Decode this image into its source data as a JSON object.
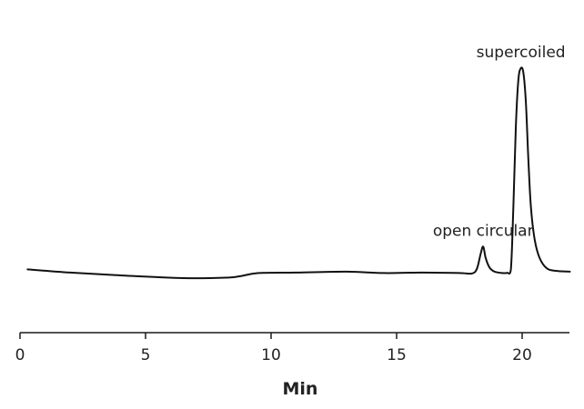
{
  "chart_data": {
    "type": "line",
    "title": "",
    "xlabel": "Min",
    "ylabel": "",
    "xlim": [
      0,
      22
    ],
    "ylim": [
      0,
      100
    ],
    "x_ticks": [
      0,
      5,
      10,
      15,
      20
    ],
    "x_tick_labels": [
      "0",
      "5",
      "10",
      "15",
      "20"
    ],
    "y_axis_visible": false,
    "grid": false,
    "legend": "none",
    "line_color": "#111111",
    "series": [
      {
        "x": [
          0.3,
          2,
          4,
          6.5,
          8.2,
          8.8,
          9.5,
          11,
          13,
          14.5,
          16,
          17.5,
          18.0,
          18.2,
          18.35,
          18.45,
          18.55,
          18.7,
          18.9,
          19.2,
          19.4,
          19.55,
          19.65,
          19.75,
          19.85,
          19.95,
          20.05,
          20.15,
          20.25,
          20.35,
          20.5,
          20.7,
          21.0,
          21.4,
          21.9
        ],
        "y": [
          13.2,
          11.8,
          10.6,
          9.4,
          9.6,
          10.3,
          11.6,
          11.8,
          12.2,
          11.6,
          11.8,
          11.6,
          11.4,
          13.5,
          20,
          23,
          18,
          14,
          12.2,
          11.6,
          11.7,
          13,
          40,
          75,
          95,
          100,
          98,
          85,
          60,
          40,
          26,
          18,
          13.5,
          12.5,
          12.2
        ]
      }
    ],
    "annotations": [
      {
        "text": "open circular",
        "x": 18.45,
        "y": 23
      },
      {
        "text": "supercoiled",
        "x": 19.95,
        "y": 100
      }
    ]
  }
}
